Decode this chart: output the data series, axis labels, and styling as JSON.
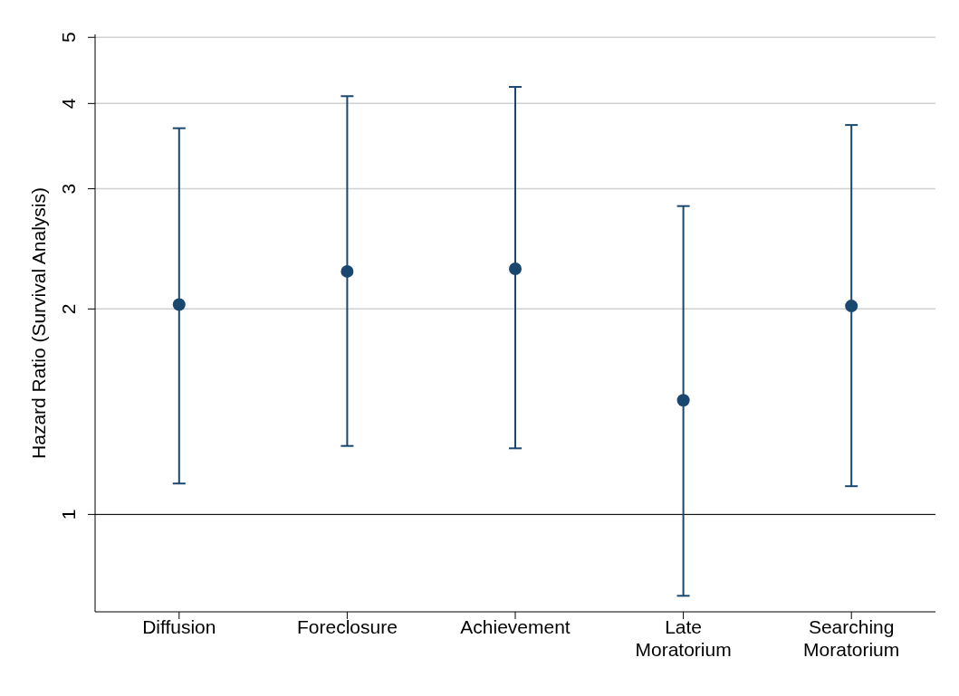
{
  "chart_data": {
    "type": "scatter",
    "ylabel": "Hazard Ratio (Survival Analysis)",
    "categories": [
      "Diffusion",
      "Foreclosure",
      "Achievement",
      "Late Moratorium",
      "Searching Moratorium"
    ],
    "series": [
      {
        "color": "#1a476f",
        "values": [
          2.03,
          2.27,
          2.29,
          1.47,
          2.02
        ],
        "errors": [
          [
            1.11,
            3.68
          ],
          [
            1.26,
            4.1
          ],
          [
            1.25,
            4.23
          ],
          [
            0.76,
            2.83
          ],
          [
            1.1,
            3.72
          ]
        ]
      }
    ],
    "log": "y",
    "ylim": [
      0.72,
      5.05
    ],
    "yticks": [
      1,
      2,
      3,
      4,
      5
    ],
    "grid": "y",
    "marker": "circle",
    "ref_lines": [
      {
        "axis": "y",
        "value": 1,
        "color": "#000000"
      }
    ]
  }
}
